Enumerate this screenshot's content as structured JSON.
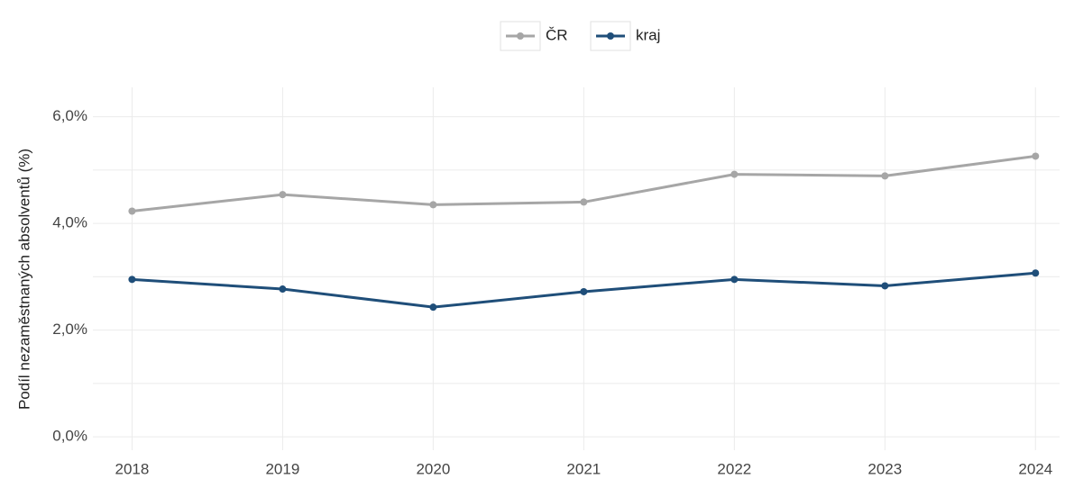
{
  "chart_data": {
    "type": "line",
    "y_label": "Podíl nezaměstnaných absolventů (%)",
    "x": [
      2018,
      2019,
      2020,
      2021,
      2022,
      2023,
      2024
    ],
    "xlim": [
      2017.74,
      2024.16
    ],
    "xticks": [
      2018,
      2019,
      2020,
      2021,
      2022,
      2023,
      2024
    ],
    "ylim": [
      -0.25,
      6.55
    ],
    "yticks": [
      {
        "value": 0,
        "label": "0,0%"
      },
      {
        "value": 2,
        "label": "2,0%"
      },
      {
        "value": 4,
        "label": "4,0%"
      },
      {
        "value": 6,
        "label": "6,0%"
      }
    ],
    "minor_yticks": [
      1,
      3,
      5
    ],
    "grid": true,
    "legend": "top",
    "series": [
      {
        "name": "ČR",
        "color": "#a6a6a6",
        "values": [
          4.23,
          4.54,
          4.35,
          4.4,
          4.92,
          4.89,
          5.26
        ]
      },
      {
        "name": "kraj",
        "color": "#1f4e79",
        "values": [
          2.95,
          2.77,
          2.43,
          2.72,
          2.95,
          2.83,
          3.07
        ]
      }
    ]
  }
}
